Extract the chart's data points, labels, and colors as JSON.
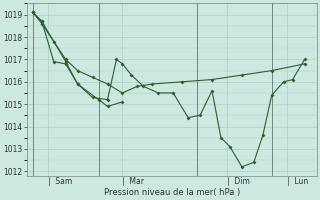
{
  "bg_color": "#cce8e0",
  "line_color": "#2d5e2d",
  "grid_color": "#aacfc4",
  "xlabel": "Pression niveau de la mer( hPa )",
  "ylim": [
    1011.8,
    1019.5
  ],
  "yticks": [
    1012,
    1013,
    1014,
    1015,
    1016,
    1017,
    1018,
    1019
  ],
  "xtick_labels": [
    "|  Sam",
    "|  Mar",
    "|  Dim",
    "|  Lun"
  ],
  "xtick_positions": [
    0.5,
    3.0,
    6.5,
    8.5
  ],
  "vline_positions": [
    0.0,
    2.2,
    5.5,
    8.0
  ],
  "line1_x": [
    0.0,
    0.3,
    0.7,
    1.1,
    1.5,
    2.0,
    2.5,
    2.8,
    3.0,
    3.3,
    3.7,
    4.2,
    4.7,
    5.2,
    5.6,
    6.0,
    6.3,
    6.6,
    7.0,
    7.4,
    7.7,
    8.0,
    8.4,
    8.7,
    9.1
  ],
  "line1_y": [
    1019.1,
    1018.7,
    1016.9,
    1016.8,
    1015.9,
    1015.3,
    1015.2,
    1017.0,
    1016.8,
    1016.3,
    1015.8,
    1015.5,
    1015.5,
    1014.4,
    1014.5,
    1015.6,
    1013.5,
    1013.1,
    1012.2,
    1012.4,
    1013.6,
    1015.4,
    1016.0,
    1016.1,
    1017.0
  ],
  "line2_x": [
    0.0,
    0.3,
    0.7,
    1.1,
    1.5,
    2.0,
    2.5,
    3.0,
    3.5,
    4.0,
    5.0,
    6.0,
    7.0,
    8.0,
    9.1
  ],
  "line2_y": [
    1019.1,
    1018.6,
    1017.8,
    1017.0,
    1016.5,
    1016.2,
    1015.9,
    1015.5,
    1015.8,
    1015.9,
    1016.0,
    1016.1,
    1016.3,
    1016.5,
    1016.8
  ],
  "line3_x": [
    0.0,
    0.3,
    1.1,
    1.5,
    2.2,
    2.5,
    3.0
  ],
  "line3_y": [
    1019.1,
    1018.7,
    1016.9,
    1015.9,
    1015.2,
    1014.9,
    1015.1
  ]
}
